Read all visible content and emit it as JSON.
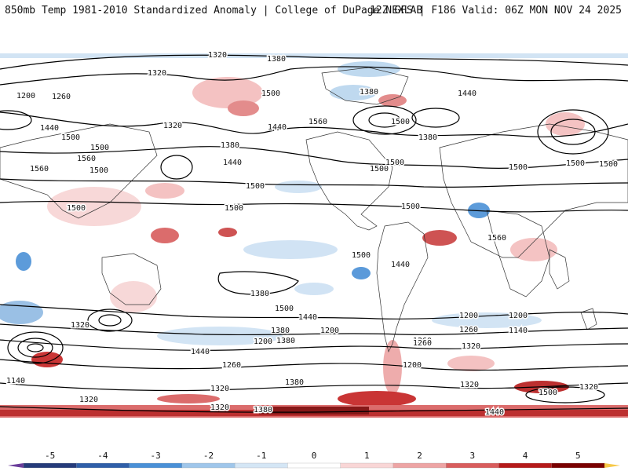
{
  "header": {
    "left": "850mb Temp 1981-2010 Standardized Anomaly | College of DuPage NEXLAB",
    "right": "12Z GFS | F186 Valid: 06Z MON NOV 24 2025"
  },
  "colorbar": {
    "ticks": [
      "-5",
      "-4",
      "-3",
      "-2",
      "-1",
      "0",
      "1",
      "2",
      "3",
      "4",
      "5"
    ],
    "colors": [
      "#6a3d9a",
      "#253b7a",
      "#2f5fa8",
      "#4a90d6",
      "#9fc6ea",
      "#d4e6f5",
      "#ffffff",
      "#f9d6d6",
      "#eda4a4",
      "#d85d5d",
      "#b51a1a",
      "#7a0000",
      "#f7c948"
    ]
  },
  "contour_labels": [
    "1320",
    "1380",
    "1320",
    "1200",
    "1260",
    "1500",
    "1380",
    "1440",
    "1320",
    "1380",
    "1440",
    "1500",
    "1440",
    "1500",
    "1560",
    "1500",
    "1440",
    "1560",
    "1380",
    "1500",
    "1560",
    "1500",
    "1500",
    "1500",
    "1500",
    "1500",
    "1500",
    "1500",
    "1500",
    "1500",
    "1560",
    "1500",
    "1440",
    "1380",
    "1500",
    "1440",
    "1320",
    "1380",
    "1200",
    "1260",
    "1320",
    "1260",
    "1140",
    "1200",
    "1200",
    "1380",
    "1440",
    "1200",
    "1260",
    "1140",
    "1200",
    "1380",
    "1320",
    "1260",
    "1320",
    "1320",
    "1320",
    "1380",
    "1440",
    "1500",
    "1320"
  ]
}
